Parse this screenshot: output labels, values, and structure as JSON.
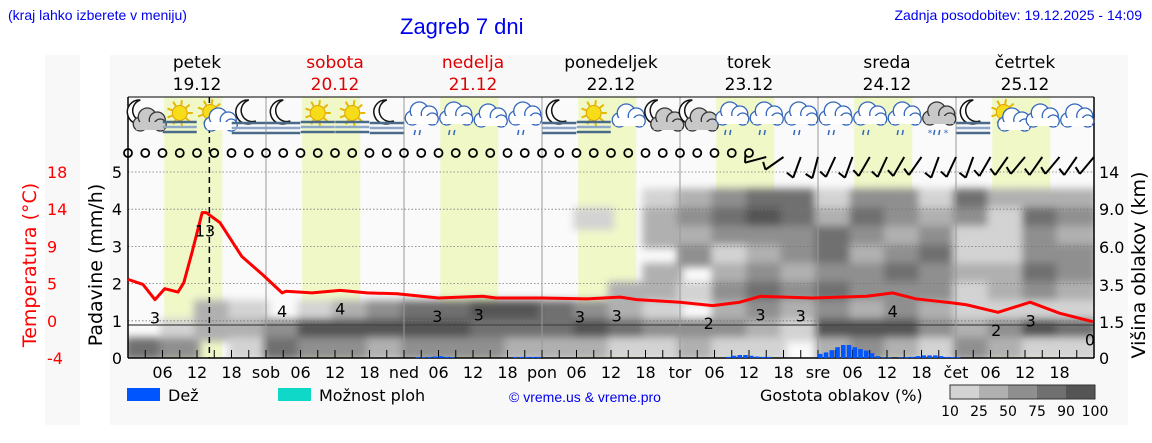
{
  "header": {
    "hint": "(kraj lahko izberete v meniju)",
    "title": "Zagreb 7 dni",
    "updated": "Zadnja posodobitev: 19.12.2025 - 14:09"
  },
  "colors": {
    "temperature": "#ff0000",
    "rain": "#0055ff",
    "showers": "#10d8c8",
    "daylight": "#f0f8c8",
    "weekend": "#dd0000",
    "link": "#0000ee"
  },
  "days": [
    {
      "name": "petek",
      "date": "19.12",
      "weekend": false
    },
    {
      "name": "sobota",
      "date": "20.12",
      "weekend": true
    },
    {
      "name": "nedelja",
      "date": "21.12",
      "weekend": true
    },
    {
      "name": "ponedeljek",
      "date": "22.12",
      "weekend": false
    },
    {
      "name": "torek",
      "date": "23.12",
      "weekend": false
    },
    {
      "name": "sreda",
      "date": "24.12",
      "weekend": false
    },
    {
      "name": "četrtek",
      "date": "25.12",
      "weekend": false
    }
  ],
  "weather_icons": [
    "moon-cloud",
    "sun-fog",
    "sun-cloud",
    "moon-fog",
    "moon-fog",
    "sun-fog",
    "sun-fog",
    "moon-fog",
    "cloud-rain",
    "cloud-rain",
    "cloud",
    "cloud-rain",
    "moon-fog",
    "sun-fog",
    "cloud",
    "moon-cloud",
    "moon-cloud",
    "cloud-rain",
    "cloud-rain",
    "cloud-rain",
    "cloud-rain",
    "cloud-rain",
    "cloud-rain",
    "cloud-sleet",
    "moon-fog",
    "sun-cloud",
    "cloud",
    "cloud"
  ],
  "chart_data": {
    "type": "meteogram",
    "current_time_hour": 14.15,
    "x_tick_labels": [
      "06",
      "12",
      "18",
      "sob",
      "06",
      "12",
      "18",
      "ned",
      "06",
      "12",
      "18",
      "pon",
      "06",
      "12",
      "18",
      "tor",
      "06",
      "12",
      "18",
      "sre",
      "06",
      "12",
      "18",
      "čet",
      "06",
      "12",
      "18"
    ],
    "left_axis_precip": {
      "label": "Padavine (mm/h)",
      "ticks": [
        "0",
        "1",
        "2",
        "3",
        "4",
        "5"
      ],
      "range": [
        0,
        5
      ]
    },
    "left_axis_temp": {
      "label": "Temperatura (°C)",
      "ticks": [
        "-4",
        "0",
        "5",
        "9",
        "14",
        "18"
      ],
      "range": [
        -4,
        18
      ]
    },
    "right_axis_cloud_height": {
      "label": "Višina oblakov (km)",
      "ticks": [
        "0",
        "1.5",
        "3.5",
        "6.0",
        "9.0",
        "14"
      ]
    },
    "grid": true,
    "temperature": {
      "hours": [
        0,
        2.6,
        4.7,
        6.4,
        8.7,
        9.7,
        11.1,
        12.9,
        13.6,
        16,
        19.8,
        23.5,
        26.8,
        27.5,
        32,
        36.9,
        41.6,
        46.8,
        54,
        61.7,
        64,
        72,
        79.8,
        85.6,
        88.5,
        96,
        101.7,
        106.4,
        110,
        119,
        128.5,
        133,
        137,
        143.5,
        145.8,
        151.3,
        156.9,
        162,
        167.8
      ],
      "values": [
        5.3,
        4.7,
        2.9,
        4.2,
        3.8,
        4.9,
        8.4,
        13.2,
        13.2,
        12.0,
        8.0,
        5.8,
        3.7,
        3.9,
        3.7,
        4.0,
        3.7,
        3.6,
        3.1,
        3.3,
        3.1,
        3.1,
        3.0,
        3.2,
        2.9,
        2.6,
        2.2,
        2.6,
        3.3,
        3.1,
        3.3,
        3.7,
        3.0,
        2.5,
        2.3,
        1.4,
        2.6,
        1.3,
        0.3
      ]
    },
    "temperature_labels": [
      {
        "hour": 4.7,
        "text": "3"
      },
      {
        "hour": 13.4,
        "text": "13"
      },
      {
        "hour": 26.8,
        "text": "4"
      },
      {
        "hour": 36.9,
        "text": "4"
      },
      {
        "hour": 53.8,
        "text": "3"
      },
      {
        "hour": 61,
        "text": "3"
      },
      {
        "hour": 78.6,
        "text": "3"
      },
      {
        "hour": 85,
        "text": "3"
      },
      {
        "hour": 101,
        "text": "2"
      },
      {
        "hour": 110,
        "text": "3"
      },
      {
        "hour": 117,
        "text": "3"
      },
      {
        "hour": 133,
        "text": "4"
      },
      {
        "hour": 151,
        "text": "2"
      },
      {
        "hour": 157,
        "text": "3"
      },
      {
        "hour": 168,
        "text": "0"
      }
    ],
    "precipitation_mm_h": [
      [
        50,
        0.02
      ],
      [
        51,
        0.02
      ],
      [
        52,
        0.03
      ],
      [
        53,
        0.04
      ],
      [
        54,
        0.05
      ],
      [
        55,
        0.03
      ],
      [
        56,
        0.02
      ],
      [
        67,
        0.03
      ],
      [
        68,
        0.03
      ],
      [
        69,
        0.03
      ],
      [
        70,
        0.03
      ],
      [
        71,
        0.03
      ],
      [
        104,
        0.03
      ],
      [
        105,
        0.06
      ],
      [
        106,
        0.08
      ],
      [
        107,
        0.08
      ],
      [
        108,
        0.06
      ],
      [
        109,
        0.04
      ],
      [
        110,
        0.03
      ],
      [
        111,
        0.03
      ],
      [
        120,
        0.11
      ],
      [
        121,
        0.15
      ],
      [
        122,
        0.21
      ],
      [
        123,
        0.29
      ],
      [
        124,
        0.35
      ],
      [
        125,
        0.35
      ],
      [
        126,
        0.29
      ],
      [
        127,
        0.24
      ],
      [
        128,
        0.2
      ],
      [
        129,
        0.13
      ],
      [
        130,
        0.05
      ],
      [
        131,
        0.02
      ],
      [
        132,
        0.02
      ],
      [
        134,
        0.02
      ],
      [
        135,
        0.02
      ],
      [
        136,
        0.03
      ],
      [
        137,
        0.05
      ],
      [
        138,
        0.07
      ],
      [
        139,
        0.07
      ],
      [
        140,
        0.07
      ],
      [
        141,
        0.05
      ],
      [
        142,
        0.03
      ],
      [
        143,
        0.02
      ],
      [
        144,
        0.02
      ]
    ],
    "wind": {
      "calm_until_index": 36,
      "barb_directions_deg": [
        255,
        235,
        200,
        195,
        205,
        200,
        210,
        205,
        210,
        215,
        200,
        205,
        200,
        210,
        215,
        220,
        215,
        220,
        215,
        220
      ]
    },
    "cloud_density_percent": {
      "time_step_hours": 6,
      "levels": [
        10,
        25,
        50,
        75,
        90,
        100
      ],
      "columns_top_to_bottom": [
        [
          0,
          0,
          0,
          0,
          0,
          0,
          0,
          0,
          0,
          75
        ],
        [
          0,
          0,
          0,
          0,
          0,
          0,
          0,
          0,
          10,
          50
        ],
        [
          0,
          0,
          0,
          0,
          0,
          0,
          0,
          25,
          25,
          0
        ],
        [
          0,
          0,
          0,
          0,
          0,
          0,
          0,
          10,
          25,
          10
        ],
        [
          0,
          0,
          0,
          0,
          0,
          0,
          0,
          0,
          50,
          75
        ],
        [
          0,
          0,
          0,
          0,
          0,
          0,
          0,
          10,
          90,
          50
        ],
        [
          0,
          0,
          0,
          0,
          0,
          0,
          0,
          25,
          90,
          50
        ],
        [
          0,
          0,
          0,
          0,
          0,
          0,
          0,
          50,
          90,
          25
        ],
        [
          0,
          0,
          0,
          0,
          0,
          0,
          0,
          75,
          90,
          50
        ],
        [
          0,
          0,
          0,
          0,
          0,
          0,
          0,
          75,
          90,
          50
        ],
        [
          0,
          0,
          0,
          0,
          0,
          0,
          0,
          90,
          75,
          50
        ],
        [
          0,
          0,
          0,
          0,
          0,
          0,
          0,
          90,
          75,
          25
        ],
        [
          0,
          0,
          0,
          0,
          0,
          0,
          0,
          75,
          75,
          25
        ],
        [
          0,
          0,
          10,
          0,
          0,
          0,
          0,
          50,
          90,
          25
        ],
        [
          0,
          0,
          0,
          0,
          0,
          0,
          25,
          25,
          75,
          10
        ],
        [
          0,
          10,
          25,
          25,
          0,
          25,
          25,
          10,
          50,
          10
        ],
        [
          0,
          25,
          50,
          25,
          50,
          0,
          10,
          0,
          50,
          25
        ],
        [
          0,
          50,
          75,
          50,
          10,
          25,
          50,
          25,
          50,
          10
        ],
        [
          0,
          75,
          90,
          50,
          25,
          50,
          75,
          50,
          25,
          10
        ],
        [
          0,
          75,
          75,
          50,
          50,
          25,
          50,
          25,
          10,
          0
        ],
        [
          0,
          10,
          25,
          75,
          75,
          50,
          75,
          50,
          90,
          25
        ],
        [
          0,
          50,
          75,
          50,
          25,
          50,
          50,
          25,
          90,
          50
        ],
        [
          0,
          50,
          50,
          25,
          50,
          75,
          50,
          50,
          90,
          25
        ],
        [
          0,
          10,
          25,
          50,
          75,
          50,
          50,
          25,
          50,
          10
        ],
        [
          0,
          75,
          50,
          10,
          10,
          25,
          10,
          10,
          25,
          50
        ],
        [
          0,
          25,
          10,
          10,
          10,
          25,
          25,
          10,
          50,
          25
        ],
        [
          0,
          25,
          75,
          50,
          50,
          75,
          50,
          10,
          90,
          10
        ],
        [
          0,
          25,
          50,
          25,
          50,
          50,
          25,
          10,
          75,
          10
        ]
      ]
    }
  },
  "legend": {
    "rain_label": "Dež",
    "showers_label": "Možnost ploh",
    "copyright": "© vreme.us & vreme.pro",
    "cloud_density_label": "Gostota oblakov (%)",
    "cloud_scale_labels": [
      "10",
      "25",
      "50",
      "75",
      "90",
      "100"
    ],
    "cloud_scale_colors": [
      "#d3d3d3",
      "#b0b0b0",
      "#8f8f8f",
      "#707070",
      "#555555"
    ]
  }
}
